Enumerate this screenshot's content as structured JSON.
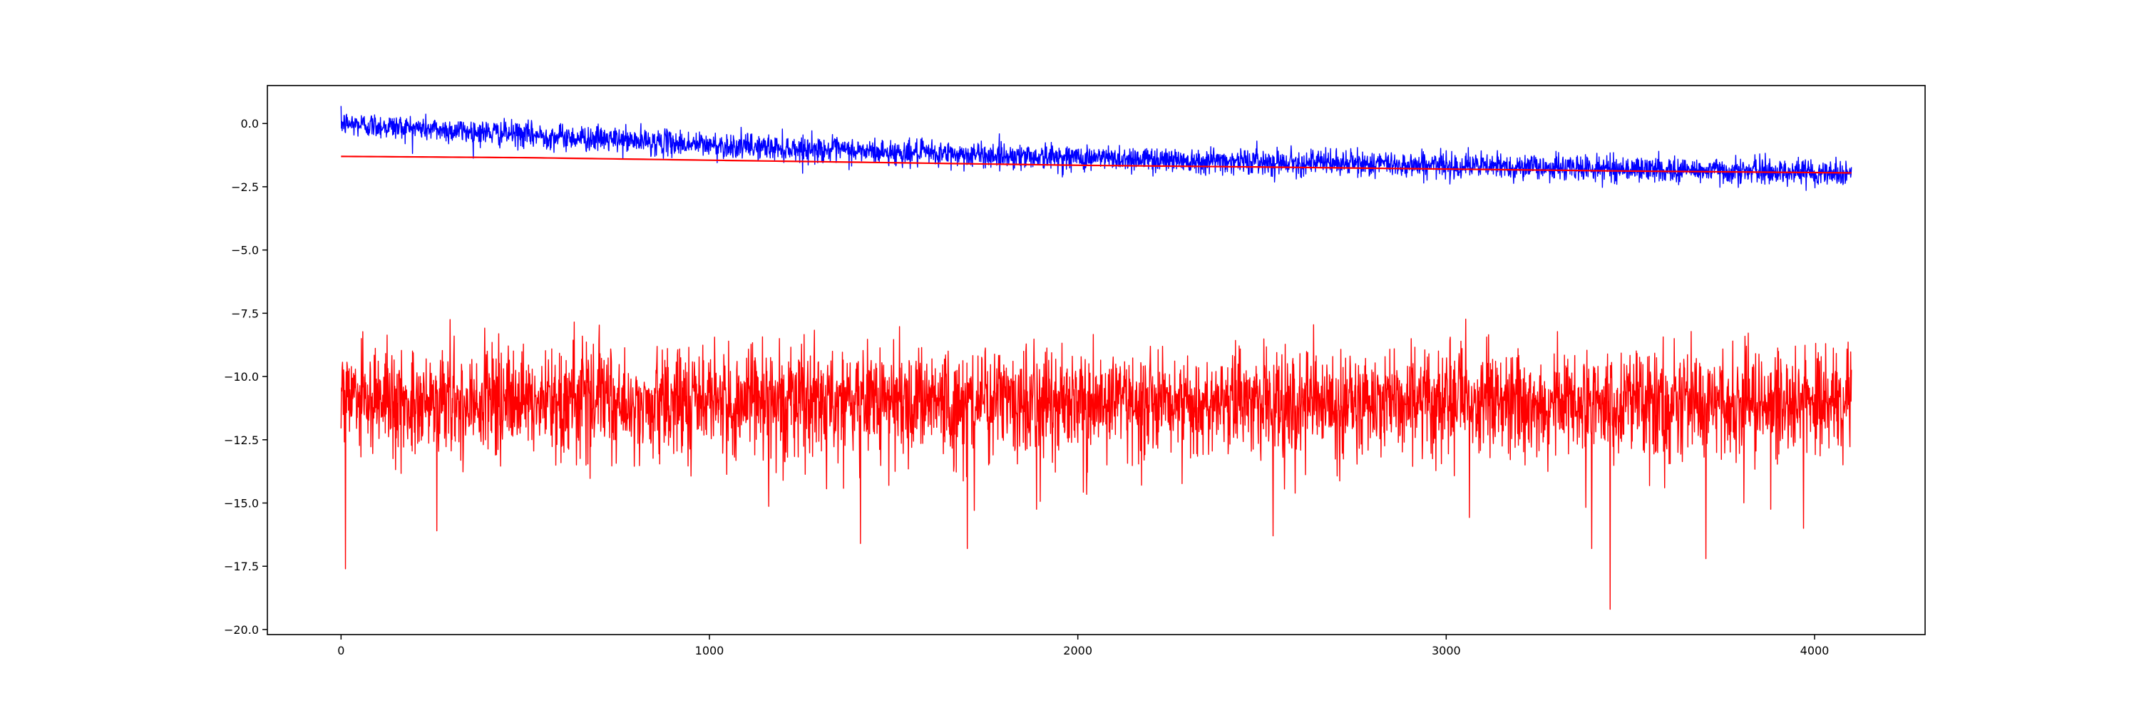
{
  "colors": {
    "background": "#ffffff",
    "axes": "#000000",
    "series_blue": "#0000ff",
    "series_red": "#ff0000"
  },
  "chart_data": {
    "type": "line",
    "title": "",
    "xlabel": "",
    "ylabel": "",
    "xlim": [
      -200,
      4300
    ],
    "ylim": [
      -20.2,
      1.5
    ],
    "grid": false,
    "legend": "none",
    "x_ticks": [
      0,
      1000,
      2000,
      3000,
      4000
    ],
    "x_tick_labels": [
      "0",
      "1000",
      "2000",
      "3000",
      "4000"
    ],
    "y_ticks": [
      0.0,
      -2.5,
      -5.0,
      -7.5,
      -10.0,
      -12.5,
      -15.0,
      -17.5,
      -20.0
    ],
    "y_tick_labels": [
      "0.0",
      "−2.5",
      "−5.0",
      "−7.5",
      "−10.0",
      "−12.5",
      "−15.0",
      "−17.5",
      "−20.0"
    ],
    "x_range": [
      0,
      4100
    ],
    "series": [
      {
        "color": "#0000ff",
        "style": "noisy",
        "trend_x": [
          0,
          500,
          1000,
          1500,
          2000,
          2500,
          3000,
          3500,
          4100
        ],
        "trend_y": [
          0.0,
          -0.45,
          -0.85,
          -1.15,
          -1.35,
          -1.5,
          -1.65,
          -1.8,
          -1.95
        ],
        "noise_sd": 0.25,
        "spikes": []
      },
      {
        "color": "#ff0000",
        "style": "smooth",
        "trend_x": [
          0,
          500,
          1000,
          1500,
          2000,
          2500,
          3000,
          3500,
          4100
        ],
        "trend_y": [
          -1.3,
          -1.35,
          -1.45,
          -1.55,
          -1.65,
          -1.72,
          -1.8,
          -1.88,
          -1.95
        ],
        "noise_sd": 0,
        "spikes": []
      },
      {
        "color": "#ff0000",
        "style": "noisy",
        "trend_x": [
          0,
          4100
        ],
        "trend_y": [
          -11.0,
          -11.0
        ],
        "noise_sd": 1.0,
        "spikes": [
          {
            "x": 12,
            "y": -17.6
          },
          {
            "x": 260,
            "y": -16.1
          },
          {
            "x": 1410,
            "y": -16.6
          },
          {
            "x": 1700,
            "y": -16.8
          },
          {
            "x": 2530,
            "y": -16.3
          },
          {
            "x": 3395,
            "y": -16.8
          },
          {
            "x": 3445,
            "y": -19.2
          },
          {
            "x": 3705,
            "y": -17.2
          },
          {
            "x": 3970,
            "y": -16.0
          },
          {
            "x": 55,
            "y": -8.5
          },
          {
            "x": 700,
            "y": -8.6
          },
          {
            "x": 1190,
            "y": -8.5
          },
          {
            "x": 4030,
            "y": -8.7
          }
        ]
      }
    ]
  }
}
